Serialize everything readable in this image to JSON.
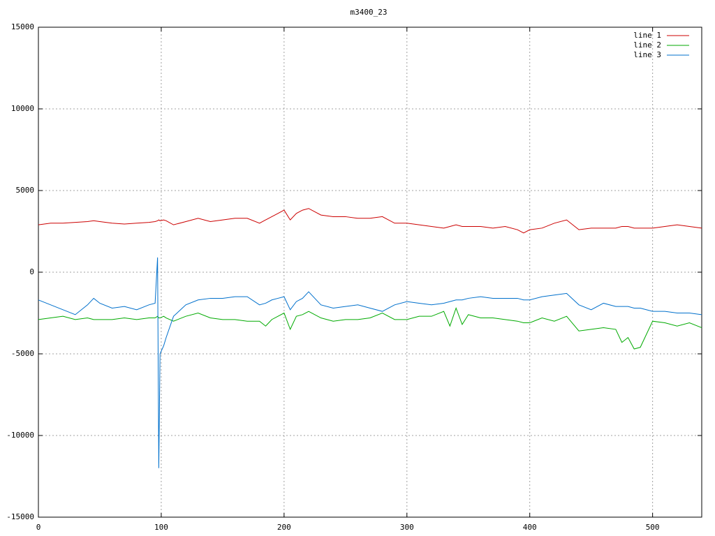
{
  "chart_data": {
    "type": "line",
    "title": "m3400_23",
    "x": [
      0,
      10,
      20,
      30,
      40,
      45,
      50,
      60,
      70,
      80,
      90,
      95,
      97,
      98,
      99,
      102,
      104,
      110,
      120,
      130,
      140,
      150,
      160,
      170,
      180,
      185,
      190,
      195,
      200,
      205,
      210,
      215,
      220,
      230,
      240,
      250,
      260,
      270,
      280,
      290,
      300,
      310,
      320,
      330,
      335,
      340,
      345,
      350,
      360,
      370,
      380,
      390,
      395,
      400,
      410,
      420,
      430,
      440,
      450,
      460,
      470,
      475,
      480,
      485,
      490,
      500,
      510,
      520,
      530,
      540
    ],
    "series": [
      {
        "name": "line 1",
        "color": "#cc0000",
        "values": [
          2900,
          3000,
          3000,
          3050,
          3100,
          3150,
          3100,
          3000,
          2950,
          3000,
          3050,
          3100,
          3150,
          3200,
          3150,
          3200,
          3150,
          2900,
          3100,
          3300,
          3100,
          3200,
          3300,
          3300,
          3000,
          3200,
          3400,
          3600,
          3800,
          3200,
          3600,
          3800,
          3900,
          3500,
          3400,
          3400,
          3300,
          3300,
          3400,
          3000,
          3000,
          2900,
          2800,
          2700,
          2800,
          2900,
          2800,
          2800,
          2800,
          2700,
          2800,
          2600,
          2400,
          2600,
          2700,
          3000,
          3200,
          2600,
          2700,
          2700,
          2700,
          2800,
          2800,
          2700,
          2700,
          2700,
          2800,
          2900,
          2800,
          2700
        ]
      },
      {
        "name": "line 2",
        "color": "#00aa00",
        "values": [
          -2900,
          -2800,
          -2700,
          -2900,
          -2800,
          -2900,
          -2900,
          -2900,
          -2800,
          -2900,
          -2800,
          -2800,
          -2700,
          -2800,
          -2800,
          -2700,
          -2800,
          -3000,
          -2700,
          -2500,
          -2800,
          -2900,
          -2900,
          -3000,
          -3000,
          -3300,
          -2900,
          -2700,
          -2500,
          -3500,
          -2700,
          -2600,
          -2400,
          -2800,
          -3000,
          -2900,
          -2900,
          -2800,
          -2500,
          -2900,
          -2900,
          -2700,
          -2700,
          -2400,
          -3300,
          -2200,
          -3200,
          -2600,
          -2800,
          -2800,
          -2900,
          -3000,
          -3100,
          -3100,
          -2800,
          -3000,
          -2700,
          -3600,
          -3500,
          -3400,
          -3500,
          -4300,
          -4000,
          -4700,
          -4600,
          -3000,
          -3100,
          -3300,
          -3100,
          -3400
        ]
      },
      {
        "name": "line 3",
        "color": "#0070cc",
        "values": [
          -1700,
          -2000,
          -2300,
          -2600,
          -2000,
          -1600,
          -1900,
          -2200,
          -2100,
          -2300,
          -2000,
          -1900,
          900,
          -12000,
          -5000,
          -4500,
          -4000,
          -2700,
          -2000,
          -1700,
          -1600,
          -1600,
          -1500,
          -1500,
          -2000,
          -1900,
          -1700,
          -1600,
          -1500,
          -2300,
          -1800,
          -1600,
          -1200,
          -2000,
          -2200,
          -2100,
          -2000,
          -2200,
          -2400,
          -2000,
          -1800,
          -1900,
          -2000,
          -1900,
          -1800,
          -1700,
          -1700,
          -1600,
          -1500,
          -1600,
          -1600,
          -1600,
          -1700,
          -1700,
          -1500,
          -1400,
          -1300,
          -2000,
          -2300,
          -1900,
          -2100,
          -2100,
          -2100,
          -2200,
          -2200,
          -2400,
          -2400,
          -2500,
          -2500,
          -2600
        ]
      }
    ],
    "xlim": [
      0,
      540
    ],
    "xticks": [
      0,
      100,
      200,
      300,
      400,
      500
    ],
    "ylim": [
      -15000,
      15000
    ],
    "yticks": [
      -15000,
      -10000,
      -5000,
      0,
      5000,
      10000,
      15000
    ],
    "grid": true,
    "legend": "top-right"
  }
}
